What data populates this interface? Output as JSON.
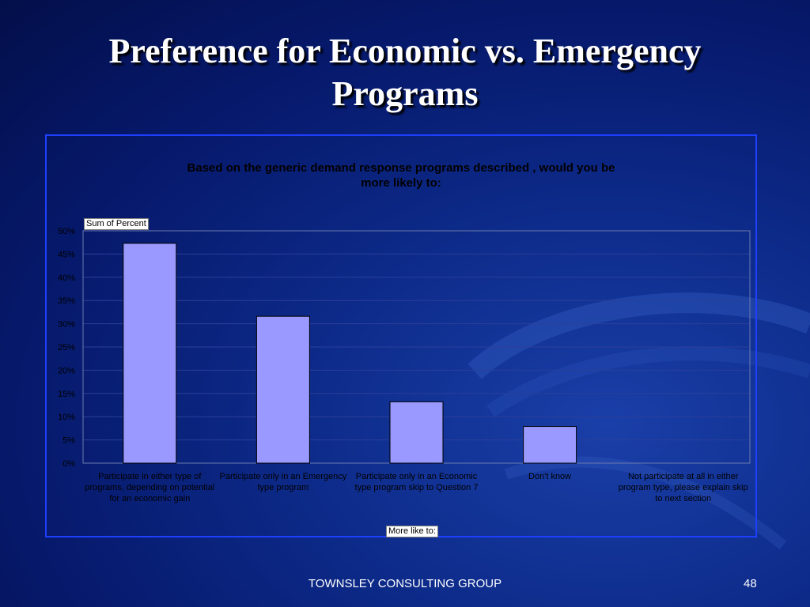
{
  "slide": {
    "title_lines": [
      "Preference for Economic vs. Emergency",
      "Programs"
    ],
    "footer": "TOWNSLEY CONSULTING GROUP",
    "page_number": "48"
  },
  "colors": {
    "background": "#0d2b8a",
    "bar_fill": "#9999ff",
    "bar_stroke": "#000000",
    "frame": "#1f3fff"
  },
  "chart_data": {
    "type": "bar",
    "title_lines": [
      "Based on the generic demand response programs described , would you be",
      "more likely to:"
    ],
    "ylabel": "Sum of Percent",
    "xlabel": "More like to:",
    "ylim": [
      0,
      0.5
    ],
    "yticks": [
      "0%",
      "5%",
      "10%",
      "15%",
      "20%",
      "25%",
      "30%",
      "35%",
      "40%",
      "45%",
      "50%"
    ],
    "grid": true,
    "categories": [
      "Participate in either type of programs, depending on potential for an economic gain",
      "Participate only in an Emergency type program",
      "Participate only in an Economic type program skip to Question 7",
      "Don't know",
      "Not participate at all in either program type, please explain   skip to next section"
    ],
    "values": [
      0.473,
      0.316,
      0.132,
      0.079,
      0.0
    ]
  }
}
